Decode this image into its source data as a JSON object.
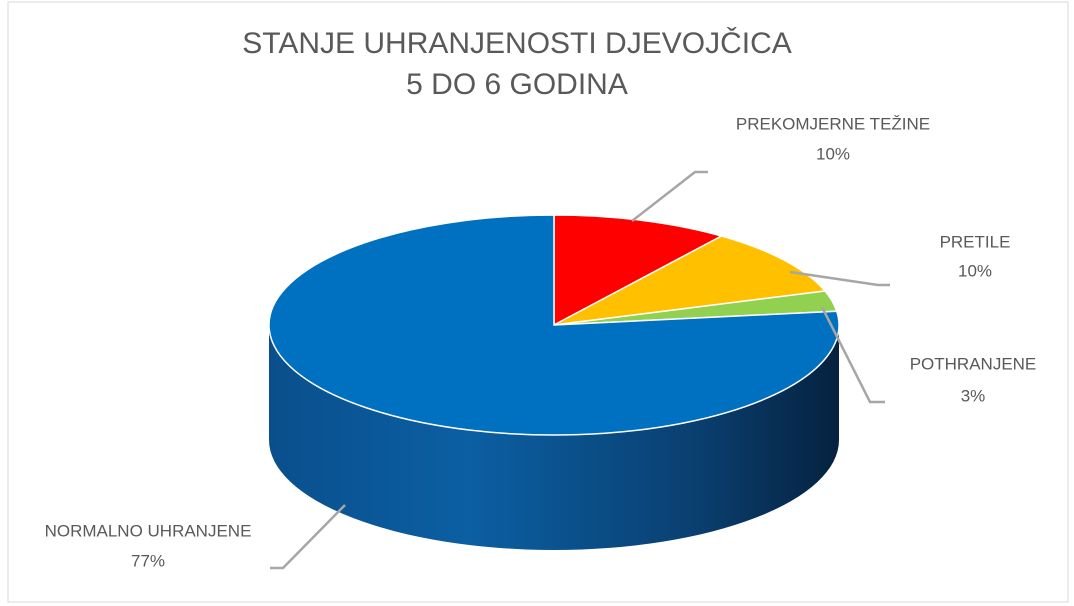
{
  "chart_data": {
    "type": "pie",
    "title": [
      "STANJE UHRANJENOSTI DJEVOJČICA",
      "5 DO 6 GODINA"
    ],
    "categories": [
      "PREKOMJERNE TEŽINE",
      "PRETILE",
      "POTHRANJENE",
      "NORMALNO UHRANJENE"
    ],
    "values": [
      10,
      10,
      3,
      77
    ],
    "value_labels": [
      "10%",
      "10%",
      "3%",
      "77%"
    ],
    "colors": [
      "#ff0000",
      "#ffc000",
      "#92d050",
      "#0070c0"
    ]
  }
}
